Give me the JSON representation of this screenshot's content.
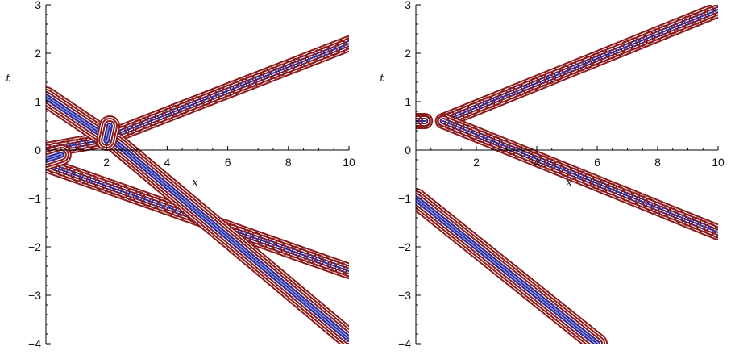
{
  "chart_data": [
    {
      "type": "contour",
      "title": "",
      "xlabel": "x",
      "ylabel": "t",
      "xlim": [
        0,
        10
      ],
      "ylim": [
        -4,
        3
      ],
      "x_major_ticks": [
        2,
        4,
        6,
        8,
        10
      ],
      "y_major_ticks": [
        -4,
        -3,
        -2,
        -1,
        0,
        1,
        2,
        3
      ],
      "x_tick_labels": [
        "2",
        "4",
        "6",
        "8",
        "10"
      ],
      "y_tick_labels": [
        "-4",
        "-3",
        "-2",
        "-1",
        "0",
        "1",
        "2",
        "3"
      ],
      "grid": false,
      "band_color_outer": "#8b1a1a",
      "band_color_inner": "#2a2a9a",
      "series": [
        {
          "style": "beaded",
          "points": [
            [
              0,
              0
            ],
            [
              1.8,
              0.2
            ],
            [
              10,
              2.2
            ]
          ]
        },
        {
          "style": "beaded",
          "points": [
            [
              0,
              -0.3
            ],
            [
              10,
              -2.5
            ]
          ]
        },
        {
          "style": "solid",
          "points": [
            [
              0,
              1.1
            ],
            [
              1.9,
              0.3
            ]
          ]
        },
        {
          "style": "solid",
          "points": [
            [
              0,
              -0.2
            ],
            [
              0.5,
              -0.1
            ]
          ]
        },
        {
          "style": "solid",
          "points": [
            [
              2.3,
              0.15
            ],
            [
              10,
              -3.9
            ]
          ]
        },
        {
          "style": "solid",
          "points": [
            [
              2.0,
              0.2
            ],
            [
              2.1,
              0.5
            ]
          ]
        }
      ]
    },
    {
      "type": "contour",
      "title": "",
      "xlabel": "x",
      "ylabel": "t",
      "xlim": [
        0,
        10
      ],
      "ylim": [
        -4,
        3
      ],
      "x_major_ticks": [
        2,
        4,
        6,
        8,
        10
      ],
      "y_major_ticks": [
        -4,
        -3,
        -2,
        -1,
        0,
        1,
        2,
        3
      ],
      "x_tick_labels": [
        "2",
        "4",
        "6",
        "8",
        "10"
      ],
      "y_tick_labels": [
        "-4",
        "-3",
        "-2",
        "-1",
        "0",
        "1",
        "2",
        "3"
      ],
      "grid": false,
      "band_color_outer": "#8b1a1a",
      "band_color_inner": "#2a2a9a",
      "series": [
        {
          "style": "beaded",
          "points": [
            [
              0.9,
              0.6
            ],
            [
              10,
              2.9
            ]
          ]
        },
        {
          "style": "beaded",
          "points": [
            [
              0.9,
              0.6
            ],
            [
              10,
              -1.7
            ]
          ]
        },
        {
          "style": "beaded",
          "points": [
            [
              0,
              0.6
            ],
            [
              0.3,
              0.6
            ]
          ]
        },
        {
          "style": "solid",
          "points": [
            [
              0,
              -1.0
            ],
            [
              6.0,
              -4.0
            ]
          ]
        }
      ]
    }
  ]
}
